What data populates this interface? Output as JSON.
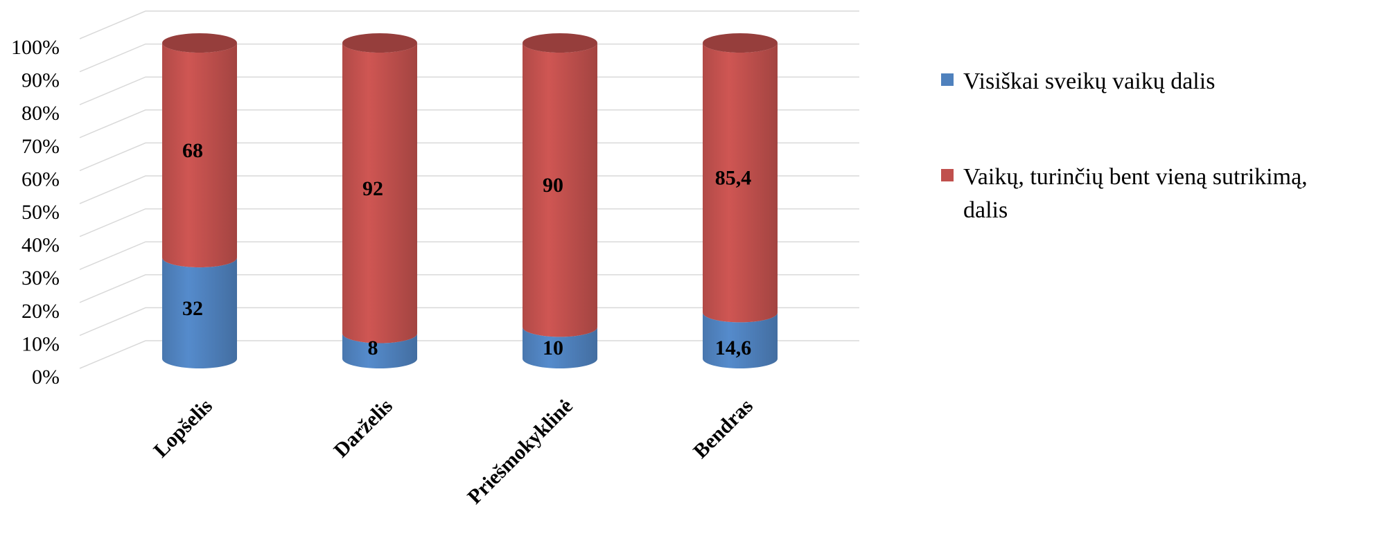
{
  "chart_data": {
    "type": "bar",
    "subtype": "stacked-100-percent-cylinder-3d",
    "categories": [
      "Lopšelis",
      "Darželis",
      "Priešmokyklinė",
      "Bendras"
    ],
    "series": [
      {
        "name": "Visiškai sveikų vaikų dalis",
        "values": [
          32,
          8,
          10,
          14.6
        ],
        "labels": [
          "32",
          "8",
          "10",
          "14,6"
        ],
        "color": "#4F81BD"
      },
      {
        "name": "Vaikų, turinčių bent vieną sutrikimą, dalis",
        "values": [
          68,
          92,
          90,
          85.4
        ],
        "labels": [
          "68",
          "92",
          "90",
          "85,4"
        ],
        "color": "#C0504D"
      }
    ],
    "yticks": [
      "0%",
      "10%",
      "20%",
      "30%",
      "40%",
      "50%",
      "60%",
      "70%",
      "80%",
      "90%",
      "100%"
    ],
    "ylim": [
      0,
      100
    ],
    "title": "",
    "xlabel": "",
    "ylabel": "",
    "grid": true,
    "legend_position": "right"
  }
}
